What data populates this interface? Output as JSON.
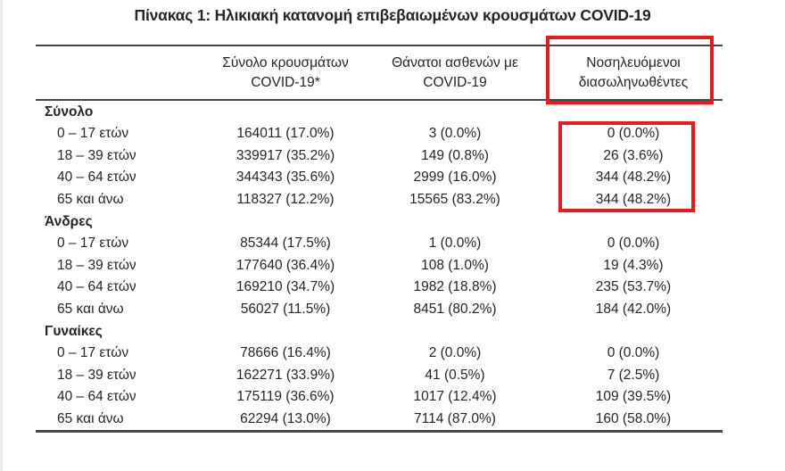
{
  "page": {
    "title": "Πίνακας 1: Ηλικιακή κατανομή επιβεβαιωμένων κρουσμάτων COVID-19"
  },
  "table": {
    "columns": [
      {
        "line1": "",
        "line2": ""
      },
      {
        "line1": "Σύνολο κρουσμάτων",
        "line2": "COVID-19*"
      },
      {
        "line1": "Θάνατοι ασθενών με",
        "line2": "COVID-19"
      },
      {
        "line1": "Νοσηλευόμενοι",
        "line2": "διασωληνωθέντες"
      }
    ],
    "sections": [
      {
        "label": "Σύνολο",
        "rows": [
          {
            "label": "0 – 17 ετών",
            "cells": [
              "164011 (17.0%)",
              "3 (0.0%)",
              "0 (0.0%)"
            ]
          },
          {
            "label": "18 – 39 ετών",
            "cells": [
              "339917 (35.2%)",
              "149 (0.8%)",
              "26 (3.6%)"
            ]
          },
          {
            "label": "40 – 64 ετών",
            "cells": [
              "344343 (35.6%)",
              "2999 (16.0%)",
              "344 (48.2%)"
            ]
          },
          {
            "label": "65 και άνω",
            "cells": [
              "118327 (12.2%)",
              "15565 (83.2%)",
              "344 (48.2%)"
            ]
          }
        ]
      },
      {
        "label": "Άνδρες",
        "rows": [
          {
            "label": "0 – 17 ετών",
            "cells": [
              "85344 (17.5%)",
              "1 (0.0%)",
              "0 (0.0%)"
            ]
          },
          {
            "label": "18 – 39 ετών",
            "cells": [
              "177640 (36.4%)",
              "108 (1.0%)",
              "19 (4.3%)"
            ]
          },
          {
            "label": "40 – 64 ετών",
            "cells": [
              "169210 (34.7%)",
              "1982 (18.8%)",
              "235 (53.7%)"
            ]
          },
          {
            "label": "65 και άνω",
            "cells": [
              "56027 (11.5%)",
              "8451 (80.2%)",
              "184 (42.0%)"
            ]
          }
        ]
      },
      {
        "label": "Γυναίκες",
        "rows": [
          {
            "label": "0 – 17 ετών",
            "cells": [
              "78666 (16.4%)",
              "2 (0.0%)",
              "0 (0.0%)"
            ]
          },
          {
            "label": "18 – 39 ετών",
            "cells": [
              "162271 (33.9%)",
              "41 (0.5%)",
              "7 (2.5%)"
            ]
          },
          {
            "label": "40 – 64 ετών",
            "cells": [
              "175119 (36.6%)",
              "1017 (12.4%)",
              "109 (39.5%)"
            ]
          },
          {
            "label": "65 και άνω",
            "cells": [
              "62294 (13.0%)",
              "7114 (87.0%)",
              "160 (58.0%)"
            ]
          }
        ]
      }
    ]
  },
  "annotations": {
    "highlight_color": "#e8191f",
    "highlighted_column": "Νοσηλευόμενοι διασωληνωθέντες"
  }
}
